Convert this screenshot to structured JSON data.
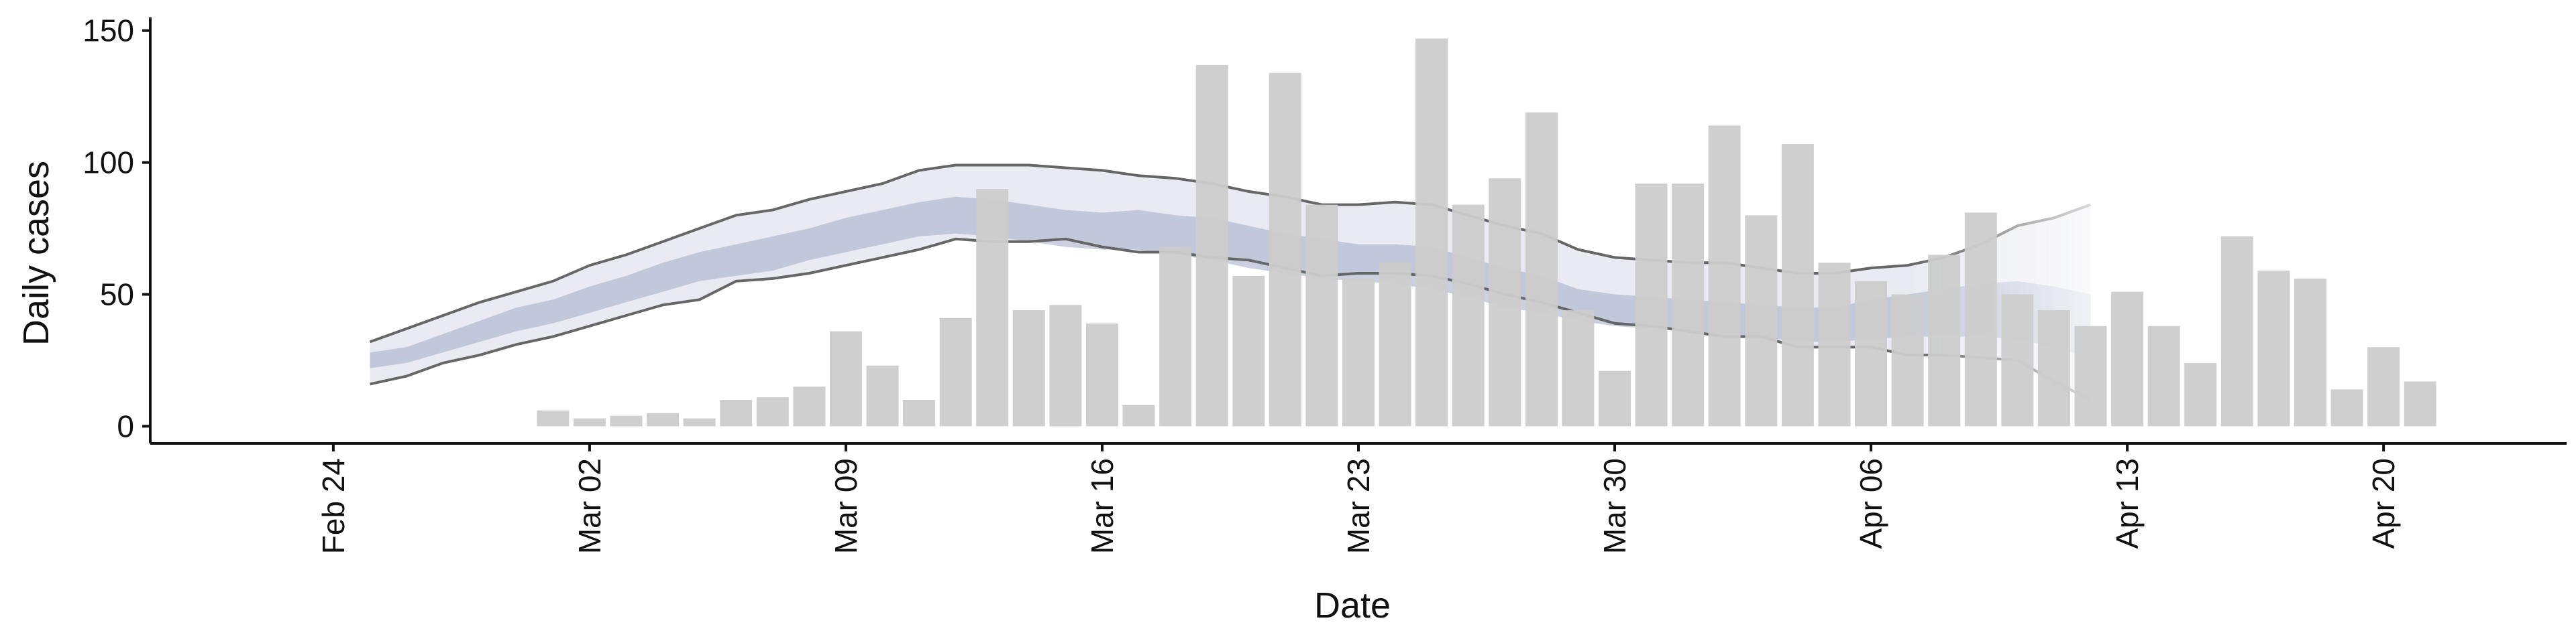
{
  "chart_data": {
    "type": "bar",
    "title": "",
    "xlabel": "Date",
    "ylabel": "Daily cases",
    "ylim": [
      -6.5,
      155
    ],
    "xlim": [
      "2020-02-19",
      "2020-04-25"
    ],
    "yticks": [
      0,
      50,
      100,
      150
    ],
    "xticks": [
      {
        "date": "2020-02-24",
        "label": "Feb 24"
      },
      {
        "date": "2020-03-02",
        "label": "Mar 02"
      },
      {
        "date": "2020-03-09",
        "label": "Mar 09"
      },
      {
        "date": "2020-03-16",
        "label": "Mar 16"
      },
      {
        "date": "2020-03-23",
        "label": "Mar 23"
      },
      {
        "date": "2020-03-30",
        "label": "Mar 30"
      },
      {
        "date": "2020-04-06",
        "label": "Apr 06"
      },
      {
        "date": "2020-04-13",
        "label": "Apr 13"
      },
      {
        "date": "2020-04-20",
        "label": "Apr 20"
      }
    ],
    "grid": false,
    "colors": {
      "bars": "#cccccc",
      "outer_band": "#e6e7f0",
      "inner_band": "#a8b0cc",
      "band_lines": "#666666",
      "axis": "#111111"
    },
    "bars": {
      "x": [
        "2020-03-01",
        "2020-03-02",
        "2020-03-03",
        "2020-03-04",
        "2020-03-05",
        "2020-03-06",
        "2020-03-07",
        "2020-03-08",
        "2020-03-09",
        "2020-03-10",
        "2020-03-11",
        "2020-03-12",
        "2020-03-13",
        "2020-03-14",
        "2020-03-15",
        "2020-03-16",
        "2020-03-17",
        "2020-03-18",
        "2020-03-19",
        "2020-03-20",
        "2020-03-21",
        "2020-03-22",
        "2020-03-23",
        "2020-03-24",
        "2020-03-25",
        "2020-03-26",
        "2020-03-27",
        "2020-03-28",
        "2020-03-29",
        "2020-03-30",
        "2020-03-31",
        "2020-04-01",
        "2020-04-02",
        "2020-04-03",
        "2020-04-04",
        "2020-04-05",
        "2020-04-06",
        "2020-04-07",
        "2020-04-08",
        "2020-04-09",
        "2020-04-10",
        "2020-04-11",
        "2020-04-12",
        "2020-04-13",
        "2020-04-14",
        "2020-04-15",
        "2020-04-16",
        "2020-04-17",
        "2020-04-18",
        "2020-04-19",
        "2020-04-20",
        "2020-04-21"
      ],
      "values": [
        6,
        3,
        4,
        5,
        3,
        10,
        11,
        15,
        36,
        23,
        10,
        41,
        90,
        44,
        46,
        39,
        8,
        68,
        137,
        57,
        134,
        84,
        56,
        62,
        147,
        84,
        94,
        119,
        44,
        21,
        92,
        92,
        114,
        80,
        107,
        62,
        55,
        50,
        65,
        81,
        50,
        44,
        38,
        51,
        38,
        24,
        72,
        59,
        56,
        14,
        30,
        17
      ]
    },
    "series": [
      {
        "x": [
          "2020-02-25",
          "2020-02-26",
          "2020-02-27",
          "2020-02-28",
          "2020-02-29",
          "2020-03-01",
          "2020-03-02",
          "2020-03-03",
          "2020-03-04",
          "2020-03-05",
          "2020-03-06",
          "2020-03-07",
          "2020-03-08",
          "2020-03-09",
          "2020-03-10",
          "2020-03-11",
          "2020-03-12",
          "2020-03-13",
          "2020-03-14",
          "2020-03-15",
          "2020-03-16",
          "2020-03-17",
          "2020-03-18",
          "2020-03-19",
          "2020-03-20",
          "2020-03-21",
          "2020-03-22",
          "2020-03-23",
          "2020-03-24",
          "2020-03-25",
          "2020-03-26",
          "2020-03-27",
          "2020-03-28",
          "2020-03-29",
          "2020-03-30",
          "2020-03-31",
          "2020-04-01",
          "2020-04-02",
          "2020-04-03",
          "2020-04-04",
          "2020-04-05",
          "2020-04-06",
          "2020-04-07",
          "2020-04-08",
          "2020-04-09",
          "2020-04-10",
          "2020-04-11",
          "2020-04-12"
        ],
        "upper_outer": [
          32,
          37,
          42,
          47,
          51,
          55,
          61,
          65,
          70,
          75,
          80,
          82,
          86,
          89,
          92,
          97,
          99,
          99,
          99,
          98,
          97,
          95,
          94,
          92,
          89,
          87,
          84,
          84,
          85,
          84,
          80,
          76,
          73,
          67,
          64,
          63,
          62,
          62,
          60,
          58,
          58,
          60,
          61,
          64,
          69,
          76,
          79,
          84
        ],
        "upper_inner": [
          28,
          30,
          35,
          40,
          45,
          48,
          53,
          57,
          62,
          66,
          69,
          72,
          75,
          79,
          82,
          85,
          87,
          86,
          84,
          82,
          81,
          82,
          80,
          79,
          76,
          73,
          71,
          69,
          69,
          68,
          64,
          60,
          57,
          52,
          50,
          49,
          48,
          47,
          46,
          45,
          45,
          48,
          50,
          52,
          54,
          55,
          53,
          50
        ],
        "lower_inner": [
          22,
          24,
          28,
          32,
          36,
          39,
          43,
          47,
          51,
          55,
          57,
          59,
          63,
          66,
          69,
          72,
          73,
          72,
          70,
          68,
          67,
          67,
          65,
          63,
          60,
          58,
          56,
          55,
          54,
          52,
          49,
          45,
          43,
          40,
          38,
          37,
          36,
          35,
          34,
          32,
          32,
          33,
          34,
          34,
          34,
          33,
          30,
          26
        ],
        "lower_outer": [
          16,
          19,
          24,
          27,
          31,
          34,
          38,
          42,
          46,
          48,
          55,
          56,
          58,
          61,
          64,
          67,
          71,
          70,
          70,
          71,
          68,
          66,
          66,
          64,
          63,
          60,
          57,
          58,
          58,
          57,
          54,
          50,
          47,
          43,
          39,
          38,
          36,
          34,
          34,
          30,
          30,
          30,
          27,
          27,
          26,
          25,
          17,
          10
        ]
      }
    ]
  }
}
